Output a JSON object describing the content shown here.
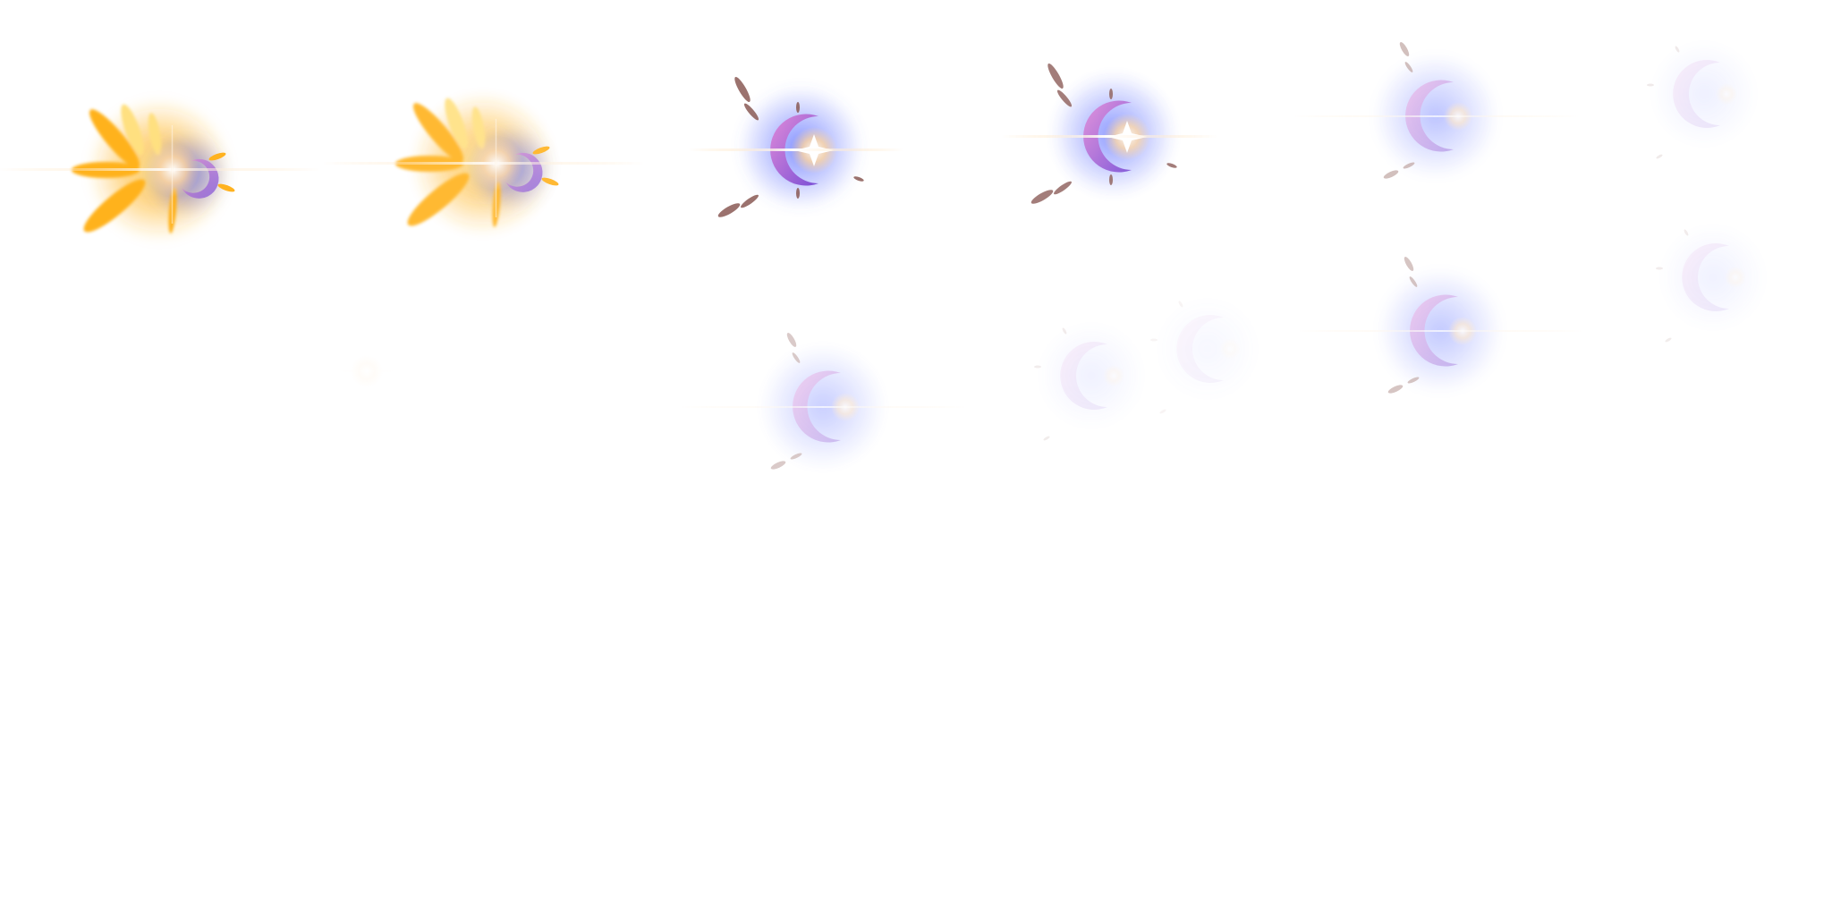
{
  "sprite_sheet": {
    "background": "#ffffff",
    "colors": {
      "gold": "#ffb21f",
      "gold_light": "#ffe080",
      "blue_glow": "#5a6cff",
      "crescent_pink": "#e08ad8",
      "crescent_violet": "#7a4fd6",
      "shard_brown": "#8a5a55",
      "flare_white": "#ffffff",
      "flare_warm": "#ffd6a0"
    },
    "frames": [
      {
        "id": "frame-01",
        "kind": "gold-burst",
        "intensity": 1.0
      },
      {
        "id": "frame-02",
        "kind": "gold-burst",
        "intensity": 0.9
      },
      {
        "id": "frame-03",
        "kind": "moon-flash",
        "intensity": 1.0
      },
      {
        "id": "frame-04",
        "kind": "moon-flash",
        "intensity": 0.92
      },
      {
        "id": "frame-05",
        "kind": "moon-fade",
        "intensity": 0.55
      },
      {
        "id": "frame-06",
        "kind": "moon-faint",
        "intensity": 0.28
      },
      {
        "id": "frame-07",
        "kind": "spark-speck",
        "intensity": 0.15
      },
      {
        "id": "frame-08",
        "kind": "moon-fade",
        "intensity": 0.45
      },
      {
        "id": "frame-09",
        "kind": "moon-faint",
        "intensity": 0.25
      },
      {
        "id": "frame-10",
        "kind": "moon-faint",
        "intensity": 0.14
      },
      {
        "id": "frame-11",
        "kind": "moon-fade",
        "intensity": 0.5
      },
      {
        "id": "frame-12",
        "kind": "moon-faint",
        "intensity": 0.25
      }
    ]
  }
}
